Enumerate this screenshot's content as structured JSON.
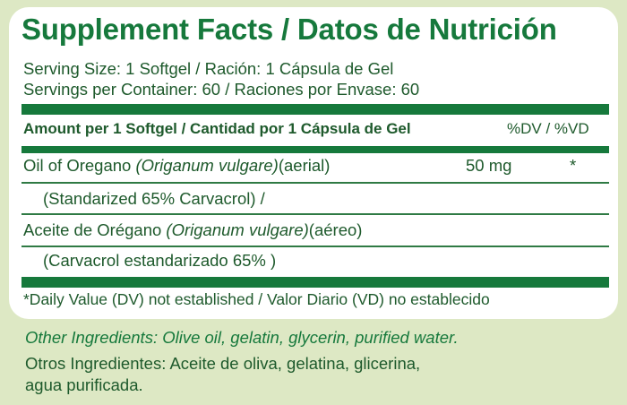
{
  "title": "Supplement Facts / Datos de Nutrición",
  "serving_size": "Serving Size: 1 Softgel / Ración: 1 Cápsula de Gel",
  "servings_per_container": "Servings per Container: 60 / Raciones por Envase: 60",
  "table_header": {
    "amount_label": "Amount per 1 Softgel / Cantidad por 1 Cápsula de Gel",
    "dv_label": "%DV / %VD"
  },
  "ingredient": {
    "name_en_prefix": "Oil of Oregano ",
    "latin_name": "(Origanum vulgare)",
    "part_en": "(aerial)",
    "amount": "50 mg",
    "dv": "*",
    "standardized_en": "(Standarized 65% Carvacrol) /",
    "name_es_prefix": "Aceite de Orégano ",
    "part_es": "(aéreo)",
    "standardized_es": "(Carvacrol estandarizado 65% )"
  },
  "footnote": "*Daily Value (DV) not established / Valor Diario (VD) no establecido",
  "other_ingredients_en": "Other Ingredients: Olive oil, gelatin, glycerin, purified water.",
  "other_ingredients_es_line1": "Otros Ingredientes: Aceite de oliva, gelatina, glicerina,",
  "other_ingredients_es_line2": "agua purificada.",
  "colors": {
    "brand_green": "#16793c",
    "text_green": "#1e5a2c",
    "background": "#dde8c4",
    "panel": "#ffffff"
  }
}
